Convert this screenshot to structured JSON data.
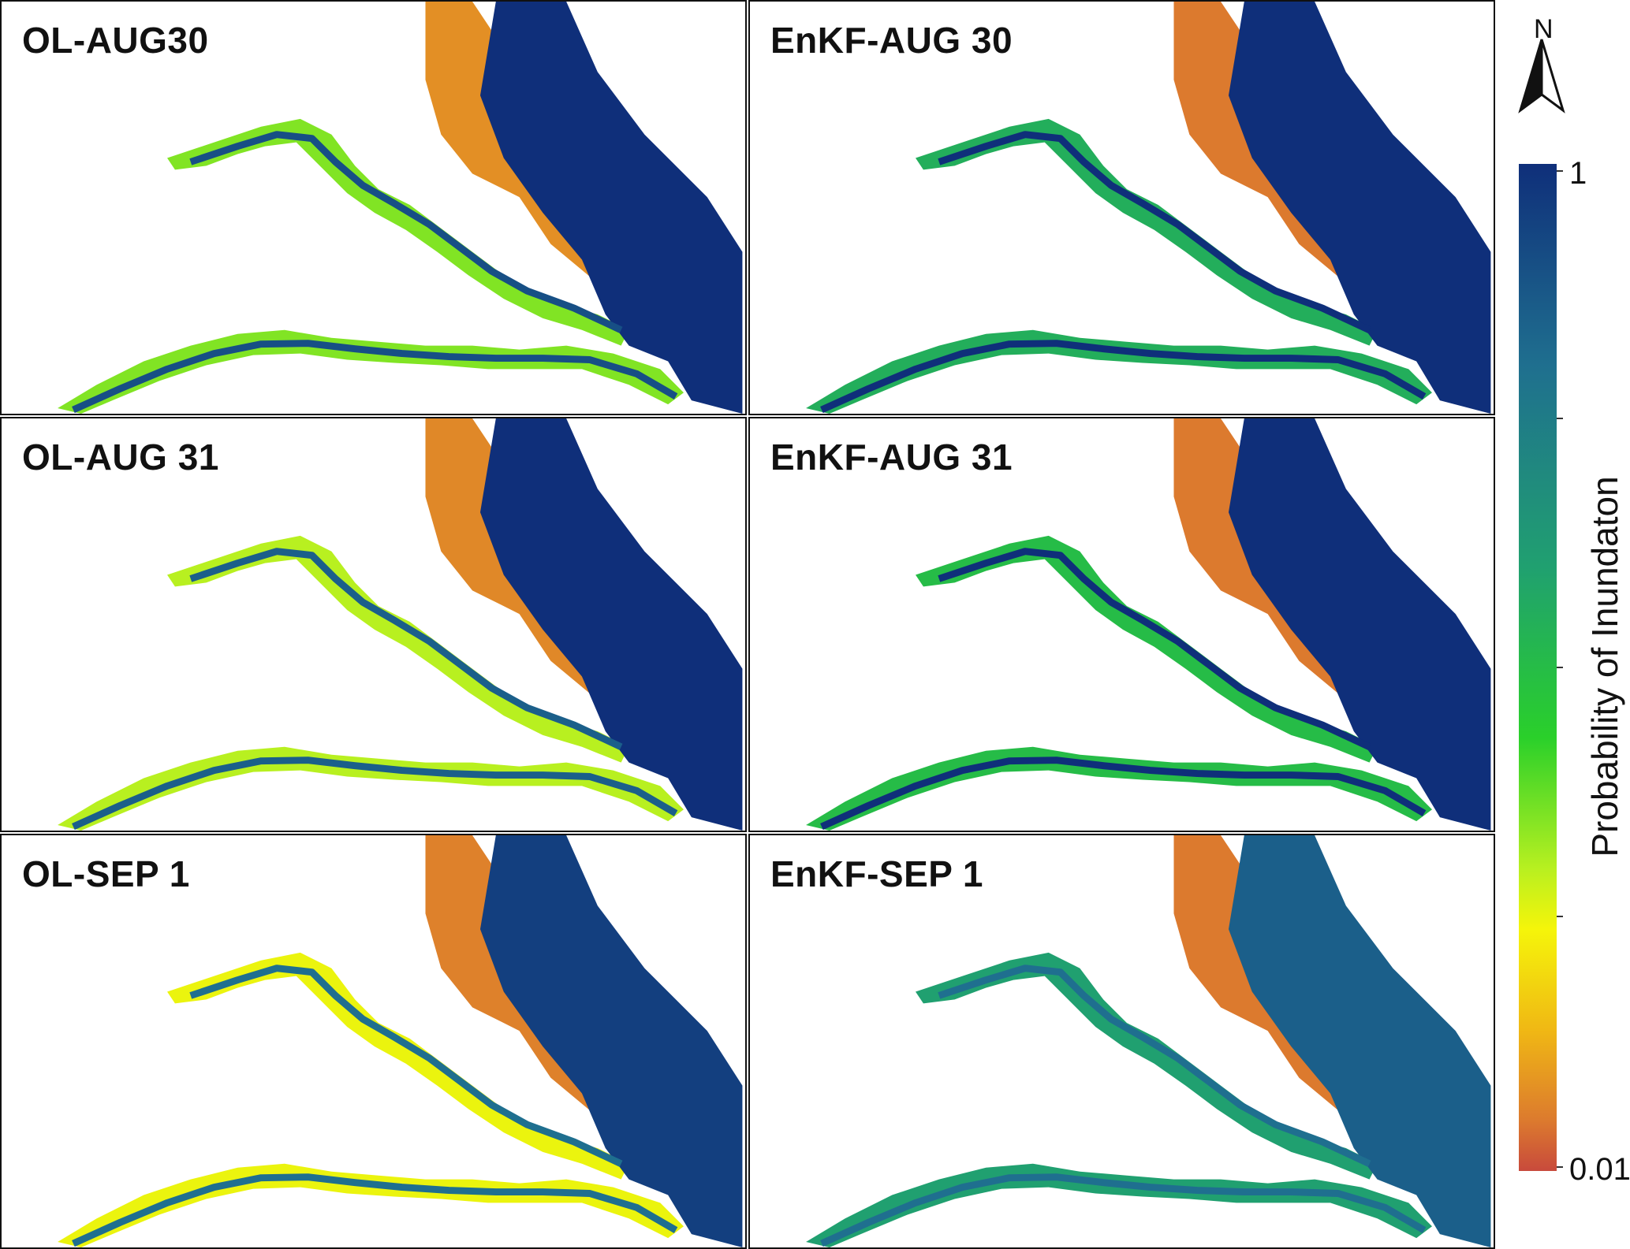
{
  "panels": [
    {
      "title": "OL-AUG30",
      "levels": {
        "main": 1.0,
        "margin": 0.35,
        "flood": 0.08,
        "trib": 0.9
      }
    },
    {
      "title": "EnKF-AUG 30",
      "levels": {
        "main": 1.0,
        "margin": 0.55,
        "flood": 0.05,
        "trib": 1.0
      }
    },
    {
      "title": "OL-AUG 31",
      "levels": {
        "main": 1.0,
        "margin": 0.3,
        "flood": 0.07,
        "trib": 0.85
      }
    },
    {
      "title": "EnKF-AUG 31",
      "levels": {
        "main": 1.0,
        "margin": 0.5,
        "flood": 0.05,
        "trib": 1.0
      }
    },
    {
      "title": "OL-SEP 1",
      "levels": {
        "main": 0.95,
        "margin": 0.25,
        "flood": 0.06,
        "trib": 0.8
      }
    },
    {
      "title": "EnKF-SEP 1",
      "levels": {
        "main": 0.85,
        "margin": 0.6,
        "flood": 0.05,
        "trib": 0.8
      }
    }
  ],
  "north_arrow": {
    "label": "N"
  },
  "colorbar": {
    "title": "Probability of Inundaton",
    "max_label": "1",
    "min_label": "0.01",
    "colors": [
      "#0f2f7a",
      "#1f6f8f",
      "#20a070",
      "#2ad02a",
      "#f5f50a",
      "#f0b814",
      "#dc7a2e",
      "#c84a3c"
    ]
  }
}
